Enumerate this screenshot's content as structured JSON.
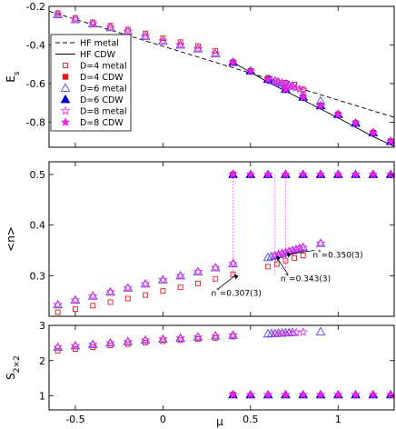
{
  "chart_data": [
    {
      "type": "line",
      "ylabel_main": "E",
      "ylabel_sub": "s",
      "xlim": [
        -0.65,
        1.32
      ],
      "ylim": [
        -0.93,
        -0.2
      ],
      "yticks": [
        -0.8,
        -0.6,
        -0.4,
        -0.2
      ],
      "ytick_labels": [
        "-0.8",
        "-0.6",
        "-0.4",
        "-0.2"
      ],
      "legend_position": "left",
      "lines": [
        {
          "name": "HF metal",
          "style": "dashed",
          "color": "#000000",
          "x": [
            -0.65,
            1.32
          ],
          "y": [
            -0.225,
            -0.775
          ]
        },
        {
          "name": "HF CDW",
          "style": "solid",
          "color": "#000000",
          "x": [
            0.4,
            0.6,
            0.8,
            1.0,
            1.2,
            1.32
          ],
          "y": [
            -0.49,
            -0.593,
            -0.685,
            -0.778,
            -0.875,
            -0.925
          ]
        }
      ],
      "series": [
        {
          "name": "D=4 metal",
          "marker": "square-open",
          "color": "#e41a1c",
          "x": [
            -0.6,
            -0.5,
            -0.4,
            -0.3,
            -0.2,
            -0.1,
            0,
            0.1,
            0.2,
            0.3,
            0.6,
            0.65,
            0.7,
            0.75,
            0.8
          ],
          "y": [
            -0.235,
            -0.26,
            -0.283,
            -0.3,
            -0.32,
            -0.34,
            -0.365,
            -0.385,
            -0.405,
            -0.43,
            -0.57,
            -0.585,
            -0.595,
            -0.605,
            -0.63
          ]
        },
        {
          "name": "D=4 CDW",
          "marker": "square-filled",
          "color": "#e41a1c",
          "x": [
            0.4,
            0.5,
            0.6,
            0.7,
            0.8,
            0.9,
            1.0,
            1.1,
            1.2,
            1.3
          ],
          "y": [
            -0.49,
            -0.535,
            -0.578,
            -0.63,
            -0.67,
            -0.715,
            -0.76,
            -0.805,
            -0.855,
            -0.9
          ]
        },
        {
          "name": "D=6 metal",
          "marker": "triangle-open",
          "color": "#4a4adf",
          "x": [
            -0.6,
            -0.5,
            -0.4,
            -0.3,
            -0.2,
            -0.1,
            0,
            0.1,
            0.2,
            0.3,
            0.6,
            0.62,
            0.64,
            0.66,
            0.68,
            0.7,
            0.72,
            0.74,
            0.9
          ],
          "y": [
            -0.242,
            -0.268,
            -0.29,
            -0.31,
            -0.33,
            -0.355,
            -0.38,
            -0.4,
            -0.42,
            -0.445,
            -0.578,
            -0.583,
            -0.588,
            -0.593,
            -0.598,
            -0.603,
            -0.608,
            -0.613,
            -0.69
          ]
        },
        {
          "name": "D=6 CDW",
          "marker": "triangle-filled",
          "color": "#0000cc",
          "x": [
            0.4,
            0.5,
            0.6,
            0.7,
            0.8,
            0.9,
            1.0,
            1.1,
            1.2,
            1.3
          ],
          "y": [
            -0.49,
            -0.535,
            -0.578,
            -0.63,
            -0.67,
            -0.715,
            -0.76,
            -0.805,
            -0.855,
            -0.9
          ]
        },
        {
          "name": "D=8 metal",
          "marker": "star-open",
          "color": "#ee22ee",
          "x": [
            -0.6,
            -0.5,
            -0.4,
            -0.3,
            -0.2,
            -0.1,
            0,
            0.1,
            0.2,
            0.3,
            0.64,
            0.66,
            0.68,
            0.7,
            0.72,
            0.74,
            0.76,
            0.78,
            0.8
          ],
          "y": [
            -0.242,
            -0.268,
            -0.29,
            -0.31,
            -0.33,
            -0.355,
            -0.38,
            -0.4,
            -0.42,
            -0.445,
            -0.586,
            -0.592,
            -0.598,
            -0.604,
            -0.61,
            -0.616,
            -0.622,
            -0.628,
            -0.634
          ]
        },
        {
          "name": "D=8 CDW",
          "marker": "star-filled",
          "color": "#ee22ee",
          "x": [
            0.4,
            0.5,
            0.6,
            0.7,
            0.8,
            0.9,
            1.0,
            1.1,
            1.2,
            1.3
          ],
          "y": [
            -0.49,
            -0.535,
            -0.578,
            -0.63,
            -0.67,
            -0.715,
            -0.76,
            -0.805,
            -0.855,
            -0.9
          ]
        }
      ]
    },
    {
      "type": "scatter",
      "ylabel": "<n>",
      "xlim": [
        -0.65,
        1.32
      ],
      "ylim": [
        0.22,
        0.525
      ],
      "yticks": [
        0.3,
        0.4,
        0.5
      ],
      "ytick_labels": [
        "0.3",
        "0.4",
        "0.5"
      ],
      "vlines_x": [
        0.4,
        0.64,
        0.7
      ],
      "annotations": [
        {
          "text": "n* =0.307(3)",
          "parts": [
            "n",
            "*",
            "=0.307(3)"
          ],
          "x": 0.4,
          "y": 0.307
        },
        {
          "text": "n* =0.343(3)",
          "parts": [
            "n",
            "*",
            "=0.343(3)"
          ],
          "x": 0.64,
          "y": 0.343
        },
        {
          "text": "n* =0.350(3)",
          "parts": [
            "n",
            "*",
            "=0.350(3)"
          ],
          "x": 0.7,
          "y": 0.35
        }
      ],
      "series": [
        {
          "name": "D=4 metal",
          "marker": "square-open",
          "color": "#e41a1c",
          "x": [
            -0.6,
            -0.5,
            -0.4,
            -0.3,
            -0.2,
            -0.1,
            0,
            0.1,
            0.2,
            0.3,
            0.4,
            0.6,
            0.65,
            0.7,
            0.75,
            0.8
          ],
          "y": [
            0.228,
            0.234,
            0.241,
            0.248,
            0.255,
            0.262,
            0.27,
            0.277,
            0.285,
            0.294,
            0.303,
            0.318,
            0.323,
            0.33,
            0.335,
            0.34
          ]
        },
        {
          "name": "D=4 CDW",
          "marker": "square-filled",
          "color": "#e41a1c",
          "x": [
            0.4
          ],
          "y": [
            0.5
          ]
        },
        {
          "name": "D=6 metal",
          "marker": "triangle-open",
          "color": "#4a4adf",
          "x": [
            -0.6,
            -0.5,
            -0.4,
            -0.3,
            -0.2,
            -0.1,
            0,
            0.1,
            0.2,
            0.3,
            0.4,
            0.6,
            0.62,
            0.64,
            0.66,
            0.68,
            0.7,
            0.72,
            0.74,
            0.76,
            0.78,
            0.8,
            0.9
          ],
          "y": [
            0.243,
            0.252,
            0.26,
            0.268,
            0.276,
            0.284,
            0.292,
            0.3,
            0.308,
            0.316,
            0.324,
            0.336,
            0.338,
            0.34,
            0.342,
            0.344,
            0.346,
            0.348,
            0.35,
            0.352,
            0.354,
            0.356,
            0.364
          ]
        },
        {
          "name": "D=6 CDW",
          "marker": "triangle-filled",
          "color": "#0000cc",
          "x": [
            0.4,
            0.5,
            0.6,
            0.7,
            0.8,
            0.9,
            1.0,
            1.1,
            1.2,
            1.3
          ],
          "y": [
            0.5,
            0.5,
            0.5,
            0.5,
            0.5,
            0.5,
            0.5,
            0.5,
            0.5,
            0.5
          ]
        },
        {
          "name": "D=8 metal",
          "marker": "star-open",
          "color": "#ee22ee",
          "x": [
            -0.6,
            -0.5,
            -0.4,
            -0.3,
            -0.2,
            -0.1,
            0,
            0.1,
            0.2,
            0.3,
            0.4,
            0.64,
            0.66,
            0.68,
            0.7,
            0.72,
            0.74,
            0.76,
            0.78,
            0.8,
            0.9
          ],
          "y": [
            0.243,
            0.252,
            0.26,
            0.268,
            0.276,
            0.284,
            0.292,
            0.3,
            0.308,
            0.316,
            0.324,
            0.34,
            0.342,
            0.344,
            0.346,
            0.348,
            0.35,
            0.352,
            0.354,
            0.356,
            0.364
          ]
        },
        {
          "name": "D=8 CDW",
          "marker": "star-filled",
          "color": "#ee22ee",
          "x": [
            0.4,
            0.5,
            0.6,
            0.7,
            0.8,
            0.9,
            1.0,
            1.1,
            1.2,
            1.3
          ],
          "y": [
            0.5,
            0.5,
            0.5,
            0.5,
            0.5,
            0.5,
            0.5,
            0.5,
            0.5,
            0.5
          ]
        }
      ]
    },
    {
      "type": "scatter",
      "ylabel_main": "S",
      "ylabel_sub": "2×2",
      "xlabel": "μ",
      "xlim": [
        -0.65,
        1.32
      ],
      "ylim": [
        0.6,
        3.0
      ],
      "xticks": [
        -0.5,
        0,
        0.5,
        1
      ],
      "xtick_labels": [
        "-0.5",
        "0",
        "0.5",
        "1"
      ],
      "yticks": [
        1,
        2,
        3
      ],
      "ytick_labels": [
        "1",
        "2",
        "3"
      ],
      "series": [
        {
          "name": "D=4 metal",
          "marker": "square-open",
          "color": "#e41a1c",
          "x": [
            -0.6,
            -0.5,
            -0.4,
            -0.3,
            -0.2,
            -0.1,
            0,
            0.1,
            0.2,
            0.3,
            0.4
          ],
          "y": [
            2.28,
            2.33,
            2.38,
            2.43,
            2.47,
            2.51,
            2.55,
            2.58,
            2.61,
            2.64,
            2.68
          ]
        },
        {
          "name": "D=4 CDW",
          "marker": "square-filled",
          "color": "#e41a1c",
          "x": [
            0.4
          ],
          "y": [
            1.03
          ]
        },
        {
          "name": "D=6 metal",
          "marker": "triangle-open",
          "color": "#4a4adf",
          "x": [
            -0.6,
            -0.5,
            -0.4,
            -0.3,
            -0.2,
            -0.1,
            0,
            0.1,
            0.2,
            0.3,
            0.4,
            0.6,
            0.62,
            0.64,
            0.66,
            0.68,
            0.7,
            0.72,
            0.74,
            0.9
          ],
          "y": [
            2.38,
            2.42,
            2.46,
            2.5,
            2.54,
            2.58,
            2.61,
            2.64,
            2.67,
            2.7,
            2.72,
            2.76,
            2.77,
            2.77,
            2.78,
            2.78,
            2.79,
            2.79,
            2.8,
            2.82
          ]
        },
        {
          "name": "D=6 CDW",
          "marker": "triangle-filled",
          "color": "#0000cc",
          "x": [
            0.4,
            0.5,
            0.6,
            0.7,
            0.8,
            0.9,
            1.0,
            1.1,
            1.2,
            1.3
          ],
          "y": [
            1.03,
            1.03,
            1.03,
            1.03,
            1.03,
            1.03,
            1.03,
            1.03,
            1.03,
            1.03
          ]
        },
        {
          "name": "D=8 metal",
          "marker": "star-open",
          "color": "#ee22ee",
          "x": [
            -0.6,
            -0.5,
            -0.4,
            -0.3,
            -0.2,
            -0.1,
            0,
            0.1,
            0.2,
            0.3,
            0.4,
            0.64,
            0.68,
            0.72,
            0.76,
            0.8
          ],
          "y": [
            2.38,
            2.42,
            2.46,
            2.5,
            2.54,
            2.58,
            2.61,
            2.64,
            2.67,
            2.7,
            2.72,
            2.77,
            2.78,
            2.79,
            2.8,
            2.81
          ]
        },
        {
          "name": "D=8 CDW",
          "marker": "star-filled",
          "color": "#ee22ee",
          "x": [
            0.4,
            0.5,
            0.6,
            0.7,
            0.8,
            0.9,
            1.0,
            1.1,
            1.2,
            1.3
          ],
          "y": [
            1.03,
            1.03,
            1.03,
            1.03,
            1.03,
            1.03,
            1.03,
            1.03,
            1.03,
            1.03
          ]
        }
      ]
    }
  ]
}
